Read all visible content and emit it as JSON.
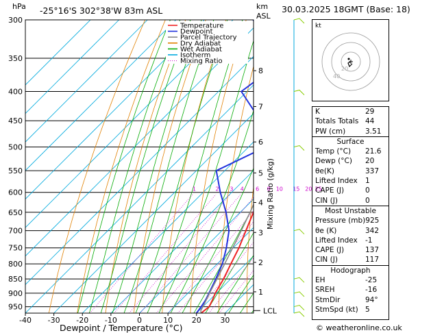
{
  "header": {
    "pressure_unit": "hPa",
    "location": "-25°16'S  302°38'W  83m  ASL",
    "km_label": "km",
    "asl_label": "ASL",
    "datetime": "30.03.2025  18GMT  (Base: 18)"
  },
  "chart_data": {
    "type": "line",
    "title": "",
    "xlabel": "Dewpoint / Temperature (°C)",
    "ylabel": "Mixing Ratio (g/kg)",
    "x_ticks": [
      -40,
      -30,
      -20,
      -10,
      0,
      10,
      20,
      30
    ],
    "xlim": [
      -40,
      40
    ],
    "ylim": [
      975,
      300
    ],
    "pressure_ticks": [
      300,
      350,
      400,
      450,
      500,
      550,
      600,
      650,
      700,
      750,
      800,
      850,
      900,
      950
    ],
    "km_ticks": [
      {
        "label": "8",
        "p": 368
      },
      {
        "label": "7",
        "p": 425
      },
      {
        "label": "6",
        "p": 490
      },
      {
        "label": "5",
        "p": 555
      },
      {
        "label": "4",
        "p": 625
      },
      {
        "label": "3",
        "p": 705
      },
      {
        "label": "2",
        "p": 795
      },
      {
        "label": "1",
        "p": 895
      }
    ],
    "lcl_label": "LCL",
    "lcl_p": 965,
    "mixing_ratio_labels": [
      "1",
      "2",
      "3",
      "4",
      "6",
      "8",
      "10",
      "15",
      "20",
      "25"
    ],
    "mixing_ratio_values": [
      1,
      2,
      3,
      4,
      6,
      8,
      10,
      15,
      20,
      25
    ],
    "legend": [
      {
        "name": "Temperature",
        "color": "#ee2222"
      },
      {
        "name": "Dewpoint",
        "color": "#2233dd"
      },
      {
        "name": "Parcel Trajectory",
        "color": "#888888"
      },
      {
        "name": "Dry Adiabat",
        "color": "#e08000"
      },
      {
        "name": "Wet Adiabat",
        "color": "#00aa00"
      },
      {
        "name": "Isotherm",
        "color": "#00aadd"
      },
      {
        "name": "Mixing Ratio",
        "color": "#cc00cc",
        "dotted": true
      }
    ],
    "series": [
      {
        "name": "Temperature",
        "color": "#ee2222",
        "points": [
          [
            975,
            21.6
          ],
          [
            950,
            22.2
          ],
          [
            925,
            21
          ],
          [
            900,
            19.6
          ],
          [
            850,
            17.5
          ],
          [
            800,
            14.8
          ],
          [
            750,
            12
          ],
          [
            700,
            8.4
          ],
          [
            650,
            4.6
          ],
          [
            600,
            0.8
          ],
          [
            550,
            -3.4
          ],
          [
            500,
            -8.6
          ],
          [
            450,
            -13.4
          ],
          [
            400,
            -19.5
          ],
          [
            350,
            -27.5
          ],
          [
            300,
            -36.5
          ]
        ]
      },
      {
        "name": "Dewpoint",
        "color": "#2233dd",
        "points": [
          [
            975,
            20
          ],
          [
            950,
            19.4
          ],
          [
            925,
            18.6
          ],
          [
            900,
            17.4
          ],
          [
            850,
            14.8
          ],
          [
            800,
            11.8
          ],
          [
            750,
            7.6
          ],
          [
            700,
            2.5
          ],
          [
            650,
            -5
          ],
          [
            600,
            -14
          ],
          [
            550,
            -23
          ],
          [
            500,
            -14
          ],
          [
            450,
            -25
          ],
          [
            400,
            -42
          ],
          [
            350,
            -38
          ],
          [
            300,
            -63
          ]
        ]
      },
      {
        "name": "Parcel Trajectory",
        "color": "#888888",
        "points": [
          [
            975,
            21.6
          ],
          [
            965,
            20.6
          ],
          [
            950,
            20.0
          ],
          [
            900,
            17.6
          ],
          [
            850,
            15.2
          ],
          [
            800,
            12.6
          ],
          [
            750,
            9.8
          ],
          [
            700,
            6.8
          ],
          [
            650,
            3.4
          ],
          [
            600,
            -0.4
          ],
          [
            550,
            -4.8
          ],
          [
            500,
            -10
          ],
          [
            450,
            -16
          ],
          [
            400,
            -23
          ],
          [
            350,
            -31.5
          ],
          [
            300,
            -41.5
          ]
        ]
      }
    ]
  },
  "hodograph": {
    "unit_label": "kt",
    "ring_labels": [
      "20",
      "40"
    ]
  },
  "indices": {
    "rows_top": [
      {
        "k": "K",
        "v": "29"
      },
      {
        "k": "Totals Totals",
        "v": "44"
      },
      {
        "k": "PW (cm)",
        "v": "3.51"
      }
    ],
    "surface_header": "Surface",
    "surface": [
      {
        "k": "Temp (°C)",
        "v": "21.6"
      },
      {
        "k": "Dewp (°C)",
        "v": "20"
      },
      {
        "k": "θe(K)",
        "v": "337"
      },
      {
        "k": "Lifted Index",
        "v": "1"
      },
      {
        "k": "CAPE (J)",
        "v": "0"
      },
      {
        "k": "CIN (J)",
        "v": "0"
      }
    ],
    "unstable_header": "Most Unstable",
    "unstable": [
      {
        "k": "Pressure (mb)",
        "v": "925"
      },
      {
        "k": "θe (K)",
        "v": "342"
      },
      {
        "k": "Lifted Index",
        "v": "-1"
      },
      {
        "k": "CAPE (J)",
        "v": "137"
      },
      {
        "k": "CIN (J)",
        "v": "117"
      }
    ],
    "hodo_header": "Hodograph",
    "hodo": [
      {
        "k": "EH",
        "v": "-25"
      },
      {
        "k": "SREH",
        "v": "-16"
      },
      {
        "k": "StmDir",
        "v": "94°"
      },
      {
        "k": "StmSpd (kt)",
        "v": "5"
      }
    ]
  },
  "footer": {
    "copyright": "© weatheronline.co.uk"
  }
}
